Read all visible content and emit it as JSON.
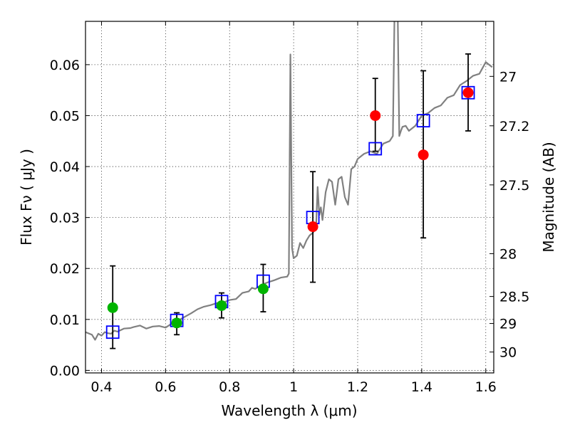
{
  "chart_data": {
    "type": "scatter",
    "xlabel": "Wavelength  λ (μm)",
    "ylabel": "Flux  Fν  ( μJy )",
    "ylabel_right": "Magnitude (AB)",
    "xlim": [
      0.35,
      1.625
    ],
    "ylim": [
      -0.0005,
      0.0685
    ],
    "x_ticks": [
      0.4,
      0.6,
      0.8,
      1.0,
      1.2,
      1.4,
      1.6
    ],
    "x_tick_labels": [
      "0.4",
      "0.6",
      "0.8",
      "1",
      "1.2",
      "1.4",
      "1.6"
    ],
    "y_ticks": [
      0.0,
      0.01,
      0.02,
      0.03,
      0.04,
      0.05,
      0.06
    ],
    "y_tick_labels": [
      "0.00",
      "0.01",
      "0.02",
      "0.03",
      "0.04",
      "0.05",
      "0.06"
    ],
    "right_ticks": [
      {
        "label": "27",
        "flux": 0.0577
      },
      {
        "label": "27.2",
        "flux": 0.048
      },
      {
        "label": "27.5",
        "flux": 0.0364
      },
      {
        "label": "28",
        "flux": 0.0229
      },
      {
        "label": "28.5",
        "flux": 0.0145
      },
      {
        "label": "29",
        "flux": 0.0092
      },
      {
        "label": "30",
        "flux": 0.0036
      }
    ],
    "grid": true,
    "series": [
      {
        "kind": "spectrum",
        "color": "#808080",
        "x": [
          0.35,
          0.37,
          0.38,
          0.39,
          0.4,
          0.41,
          0.42,
          0.43,
          0.44,
          0.45,
          0.47,
          0.49,
          0.5,
          0.52,
          0.54,
          0.56,
          0.58,
          0.6,
          0.62,
          0.64,
          0.66,
          0.68,
          0.7,
          0.72,
          0.74,
          0.76,
          0.78,
          0.8,
          0.82,
          0.84,
          0.86,
          0.87,
          0.88,
          0.9,
          0.92,
          0.94,
          0.96,
          0.98,
          0.985,
          0.99,
          0.995,
          1.0,
          1.01,
          1.02,
          1.03,
          1.04,
          1.05,
          1.06,
          1.07,
          1.075,
          1.08,
          1.085,
          1.09,
          1.1,
          1.11,
          1.12,
          1.13,
          1.14,
          1.15,
          1.16,
          1.17,
          1.18,
          1.19,
          1.2,
          1.22,
          1.24,
          1.26,
          1.28,
          1.3,
          1.31,
          1.315,
          1.32,
          1.325,
          1.33,
          1.335,
          1.34,
          1.35,
          1.36,
          1.38,
          1.4,
          1.42,
          1.44,
          1.46,
          1.48,
          1.5,
          1.52,
          1.54,
          1.56,
          1.58,
          1.6,
          1.62
        ],
        "y": [
          0.0075,
          0.007,
          0.006,
          0.0072,
          0.0068,
          0.0075,
          0.0073,
          0.0072,
          0.0078,
          0.0076,
          0.0082,
          0.0083,
          0.0085,
          0.0088,
          0.0082,
          0.0086,
          0.0087,
          0.0084,
          0.0092,
          0.0098,
          0.0105,
          0.0112,
          0.012,
          0.0125,
          0.0128,
          0.0132,
          0.0133,
          0.0138,
          0.014,
          0.0152,
          0.0155,
          0.0162,
          0.016,
          0.0168,
          0.0173,
          0.0177,
          0.0182,
          0.0184,
          0.019,
          0.062,
          0.024,
          0.022,
          0.0225,
          0.025,
          0.024,
          0.0255,
          0.0265,
          0.027,
          0.028,
          0.036,
          0.0305,
          0.032,
          0.0295,
          0.035,
          0.0375,
          0.037,
          0.0325,
          0.0375,
          0.038,
          0.034,
          0.0325,
          0.0395,
          0.04,
          0.0415,
          0.0425,
          0.043,
          0.0425,
          0.0445,
          0.045,
          0.046,
          0.07,
          0.07,
          0.07,
          0.046,
          0.047,
          0.0478,
          0.048,
          0.047,
          0.048,
          0.05,
          0.0505,
          0.0515,
          0.052,
          0.0535,
          0.054,
          0.056,
          0.0568,
          0.0578,
          0.0582,
          0.0605,
          0.0595
        ]
      },
      {
        "kind": "model_points",
        "marker": "open-square",
        "color": "#0000ff",
        "x": [
          0.435,
          0.635,
          0.775,
          0.905,
          1.06,
          1.255,
          1.405,
          1.545
        ],
        "y": [
          0.0075,
          0.0098,
          0.0135,
          0.0175,
          0.03,
          0.0435,
          0.049,
          0.0545
        ]
      },
      {
        "kind": "observed_detected",
        "marker": "filled-circle",
        "color": "#00b400",
        "x": [
          0.435,
          0.635,
          0.775,
          0.905
        ],
        "y": [
          0.0123,
          0.0093,
          0.0127,
          0.016
        ],
        "yerr_low": [
          0.0043,
          0.007,
          0.0103,
          0.0115
        ],
        "yerr_high": [
          0.0205,
          0.0113,
          0.0152,
          0.0208
        ]
      },
      {
        "kind": "observed_red",
        "marker": "filled-circle",
        "color": "#ff0000",
        "x": [
          1.06,
          1.255,
          1.405,
          1.545
        ],
        "y": [
          0.0282,
          0.05,
          0.0423,
          0.0545
        ],
        "yerr_low": [
          0.0173,
          0.043,
          0.026,
          0.047
        ],
        "yerr_high": [
          0.039,
          0.0573,
          0.0588,
          0.0621
        ]
      }
    ]
  }
}
